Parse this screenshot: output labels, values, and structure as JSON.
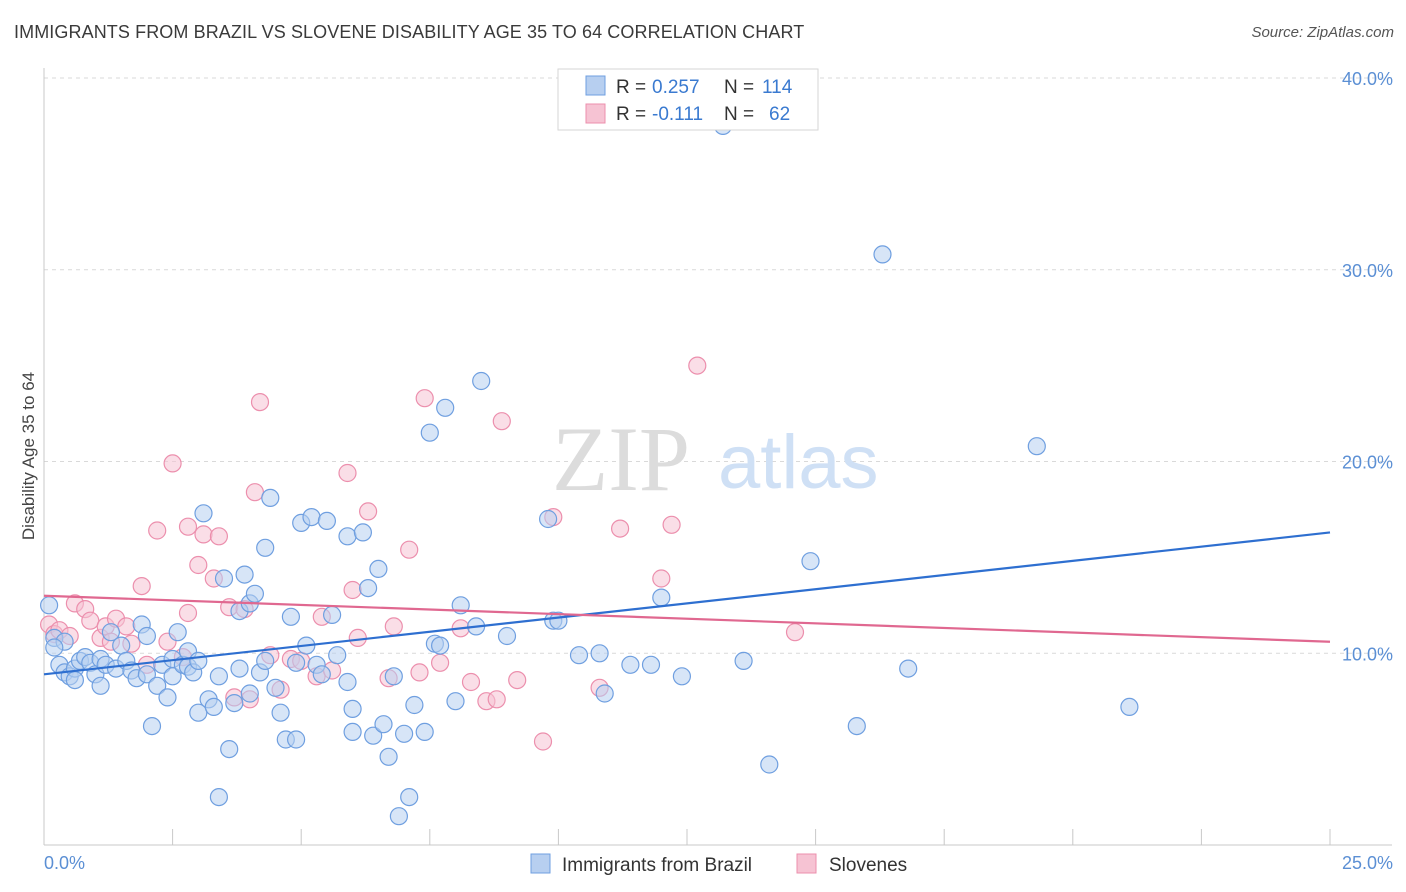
{
  "header": {
    "title": "IMMIGRANTS FROM BRAZIL VS SLOVENE DISABILITY AGE 35 TO 64 CORRELATION CHART",
    "source": "Source: ZipAtlas.com"
  },
  "watermark": {
    "zip": "ZIP",
    "atlas": "atlas"
  },
  "colors": {
    "blue_fill": "#b7cff0",
    "blue_stroke": "#6f9fe0",
    "blue_line": "#2e6fd0",
    "pink_fill": "#f6c3d3",
    "pink_stroke": "#ec8fad",
    "pink_line": "#e06890",
    "axis_label": "#5b8fd4",
    "grid": "#d9d9d9"
  },
  "legend_top": {
    "rows": [
      {
        "r_label": "R =",
        "r_value": "0.257",
        "n_label": "N =",
        "n_value": "114",
        "color": "blue"
      },
      {
        "r_label": "R =",
        "r_value": "-0.111",
        "n_label": "N =",
        "n_value": "62",
        "color": "pink"
      }
    ]
  },
  "legend_bottom": {
    "items": [
      {
        "label": "Immigrants from Brazil",
        "color": "blue"
      },
      {
        "label": "Slovenes",
        "color": "pink"
      }
    ]
  },
  "chart_data": {
    "type": "scatter",
    "title": "IMMIGRANTS FROM BRAZIL VS SLOVENE DISABILITY AGE 35 TO 64 CORRELATION CHART",
    "xlabel": "",
    "ylabel": "Disability Age 35 to 64",
    "xlim": [
      0,
      25
    ],
    "ylim": [
      0,
      40
    ],
    "x_tick_labels": [
      "0.0%",
      "25.0%"
    ],
    "y_ticks": [
      10,
      20,
      30,
      40
    ],
    "y_tick_labels": [
      "10.0%",
      "20.0%",
      "30.0%",
      "40.0%"
    ],
    "grid": true,
    "legend_placement": "bottom",
    "series": [
      {
        "name": "Immigrants from Brazil",
        "color": "blue",
        "trend": {
          "x": [
            0,
            25
          ],
          "y": [
            8.9,
            16.3
          ]
        },
        "points": [
          [
            0.1,
            12.5
          ],
          [
            0.2,
            10.8
          ],
          [
            0.3,
            9.4
          ],
          [
            0.4,
            10.6
          ],
          [
            0.4,
            9.0
          ],
          [
            0.5,
            8.8
          ],
          [
            0.6,
            9.2
          ],
          [
            0.6,
            8.6
          ],
          [
            0.7,
            9.6
          ],
          [
            0.8,
            9.8
          ],
          [
            0.9,
            9.5
          ],
          [
            1.0,
            8.9
          ],
          [
            1.1,
            8.3
          ],
          [
            1.1,
            9.7
          ],
          [
            1.2,
            9.4
          ],
          [
            1.3,
            11.1
          ],
          [
            1.4,
            9.2
          ],
          [
            1.5,
            10.4
          ],
          [
            1.6,
            9.6
          ],
          [
            1.7,
            9.1
          ],
          [
            1.8,
            8.7
          ],
          [
            1.9,
            11.5
          ],
          [
            2.0,
            8.9
          ],
          [
            2.0,
            10.9
          ],
          [
            2.1,
            6.2
          ],
          [
            2.2,
            8.3
          ],
          [
            2.3,
            9.4
          ],
          [
            2.4,
            7.7
          ],
          [
            2.5,
            8.8
          ],
          [
            2.5,
            9.7
          ],
          [
            2.6,
            11.1
          ],
          [
            2.7,
            9.4
          ],
          [
            2.8,
            10.1
          ],
          [
            2.8,
            9.3
          ],
          [
            2.9,
            9.0
          ],
          [
            3.0,
            6.9
          ],
          [
            3.0,
            9.6
          ],
          [
            3.1,
            17.3
          ],
          [
            3.2,
            7.6
          ],
          [
            3.3,
            7.2
          ],
          [
            3.4,
            8.8
          ],
          [
            3.4,
            2.5
          ],
          [
            3.5,
            13.9
          ],
          [
            3.6,
            5.0
          ],
          [
            3.7,
            7.4
          ],
          [
            3.8,
            9.2
          ],
          [
            3.8,
            12.2
          ],
          [
            3.9,
            14.1
          ],
          [
            4.0,
            7.9
          ],
          [
            4.0,
            12.6
          ],
          [
            4.1,
            13.1
          ],
          [
            4.2,
            9.0
          ],
          [
            4.3,
            15.5
          ],
          [
            4.3,
            9.6
          ],
          [
            4.4,
            18.1
          ],
          [
            4.5,
            8.2
          ],
          [
            4.6,
            6.9
          ],
          [
            4.7,
            5.5
          ],
          [
            4.8,
            11.9
          ],
          [
            4.9,
            5.5
          ],
          [
            4.9,
            9.5
          ],
          [
            5.0,
            16.8
          ],
          [
            5.1,
            10.4
          ],
          [
            5.2,
            17.1
          ],
          [
            5.3,
            9.4
          ],
          [
            5.4,
            8.9
          ],
          [
            5.5,
            16.9
          ],
          [
            5.6,
            12.0
          ],
          [
            5.7,
            9.9
          ],
          [
            5.9,
            8.5
          ],
          [
            5.9,
            16.1
          ],
          [
            6.0,
            5.9
          ],
          [
            6.0,
            7.1
          ],
          [
            6.2,
            16.3
          ],
          [
            6.3,
            13.4
          ],
          [
            6.4,
            5.7
          ],
          [
            6.5,
            14.4
          ],
          [
            6.6,
            6.3
          ],
          [
            6.7,
            4.6
          ],
          [
            6.8,
            8.8
          ],
          [
            6.9,
            1.5
          ],
          [
            7.0,
            5.8
          ],
          [
            7.1,
            2.5
          ],
          [
            7.2,
            7.3
          ],
          [
            7.4,
            5.9
          ],
          [
            7.5,
            21.5
          ],
          [
            7.6,
            10.5
          ],
          [
            7.7,
            10.4
          ],
          [
            7.8,
            22.8
          ],
          [
            8.0,
            7.5
          ],
          [
            8.1,
            12.5
          ],
          [
            8.4,
            11.4
          ],
          [
            8.5,
            24.2
          ],
          [
            9.0,
            10.9
          ],
          [
            9.8,
            17.0
          ],
          [
            9.9,
            11.7
          ],
          [
            10.0,
            11.7
          ],
          [
            10.4,
            9.9
          ],
          [
            10.8,
            10.0
          ],
          [
            10.9,
            7.9
          ],
          [
            11.4,
            9.4
          ],
          [
            11.8,
            9.4
          ],
          [
            12.0,
            12.9
          ],
          [
            12.4,
            8.8
          ],
          [
            13.2,
            37.5
          ],
          [
            13.6,
            9.6
          ],
          [
            14.1,
            4.2
          ],
          [
            14.9,
            14.8
          ],
          [
            15.8,
            6.2
          ],
          [
            16.3,
            30.8
          ],
          [
            16.8,
            9.2
          ],
          [
            19.3,
            20.8
          ],
          [
            21.1,
            7.2
          ],
          [
            0.2,
            10.3
          ]
        ]
      },
      {
        "name": "Slovenes",
        "color": "pink",
        "trend": {
          "x": [
            0,
            25
          ],
          "y": [
            13.0,
            10.6
          ]
        },
        "points": [
          [
            0.1,
            11.5
          ],
          [
            0.2,
            11.0
          ],
          [
            0.3,
            11.2
          ],
          [
            0.5,
            10.9
          ],
          [
            0.6,
            12.6
          ],
          [
            0.8,
            12.3
          ],
          [
            0.9,
            11.7
          ],
          [
            1.1,
            10.8
          ],
          [
            1.2,
            11.4
          ],
          [
            1.3,
            10.6
          ],
          [
            1.4,
            11.8
          ],
          [
            1.6,
            11.4
          ],
          [
            1.7,
            10.5
          ],
          [
            1.9,
            13.5
          ],
          [
            2.0,
            9.4
          ],
          [
            2.2,
            16.4
          ],
          [
            2.4,
            10.6
          ],
          [
            2.5,
            19.9
          ],
          [
            2.7,
            9.8
          ],
          [
            2.8,
            12.1
          ],
          [
            2.8,
            16.6
          ],
          [
            3.0,
            14.6
          ],
          [
            3.1,
            16.2
          ],
          [
            3.3,
            13.9
          ],
          [
            3.4,
            16.1
          ],
          [
            3.6,
            12.4
          ],
          [
            3.7,
            7.7
          ],
          [
            3.9,
            12.3
          ],
          [
            4.0,
            7.6
          ],
          [
            4.1,
            18.4
          ],
          [
            4.2,
            23.1
          ],
          [
            4.4,
            9.9
          ],
          [
            4.6,
            8.1
          ],
          [
            4.8,
            9.7
          ],
          [
            5.0,
            9.6
          ],
          [
            5.3,
            8.8
          ],
          [
            5.4,
            11.9
          ],
          [
            5.6,
            9.1
          ],
          [
            5.9,
            19.4
          ],
          [
            6.0,
            13.3
          ],
          [
            6.1,
            10.8
          ],
          [
            6.3,
            17.4
          ],
          [
            6.7,
            8.7
          ],
          [
            6.8,
            11.4
          ],
          [
            7.1,
            15.4
          ],
          [
            7.3,
            9.0
          ],
          [
            7.4,
            23.3
          ],
          [
            7.7,
            9.5
          ],
          [
            8.1,
            11.3
          ],
          [
            8.3,
            8.5
          ],
          [
            8.6,
            7.5
          ],
          [
            8.8,
            7.6
          ],
          [
            8.9,
            22.1
          ],
          [
            9.2,
            8.6
          ],
          [
            9.7,
            5.4
          ],
          [
            9.9,
            17.1
          ],
          [
            10.8,
            8.2
          ],
          [
            11.2,
            16.5
          ],
          [
            12.0,
            13.9
          ],
          [
            12.2,
            16.7
          ],
          [
            12.7,
            25.0
          ],
          [
            14.6,
            11.1
          ]
        ]
      }
    ]
  }
}
